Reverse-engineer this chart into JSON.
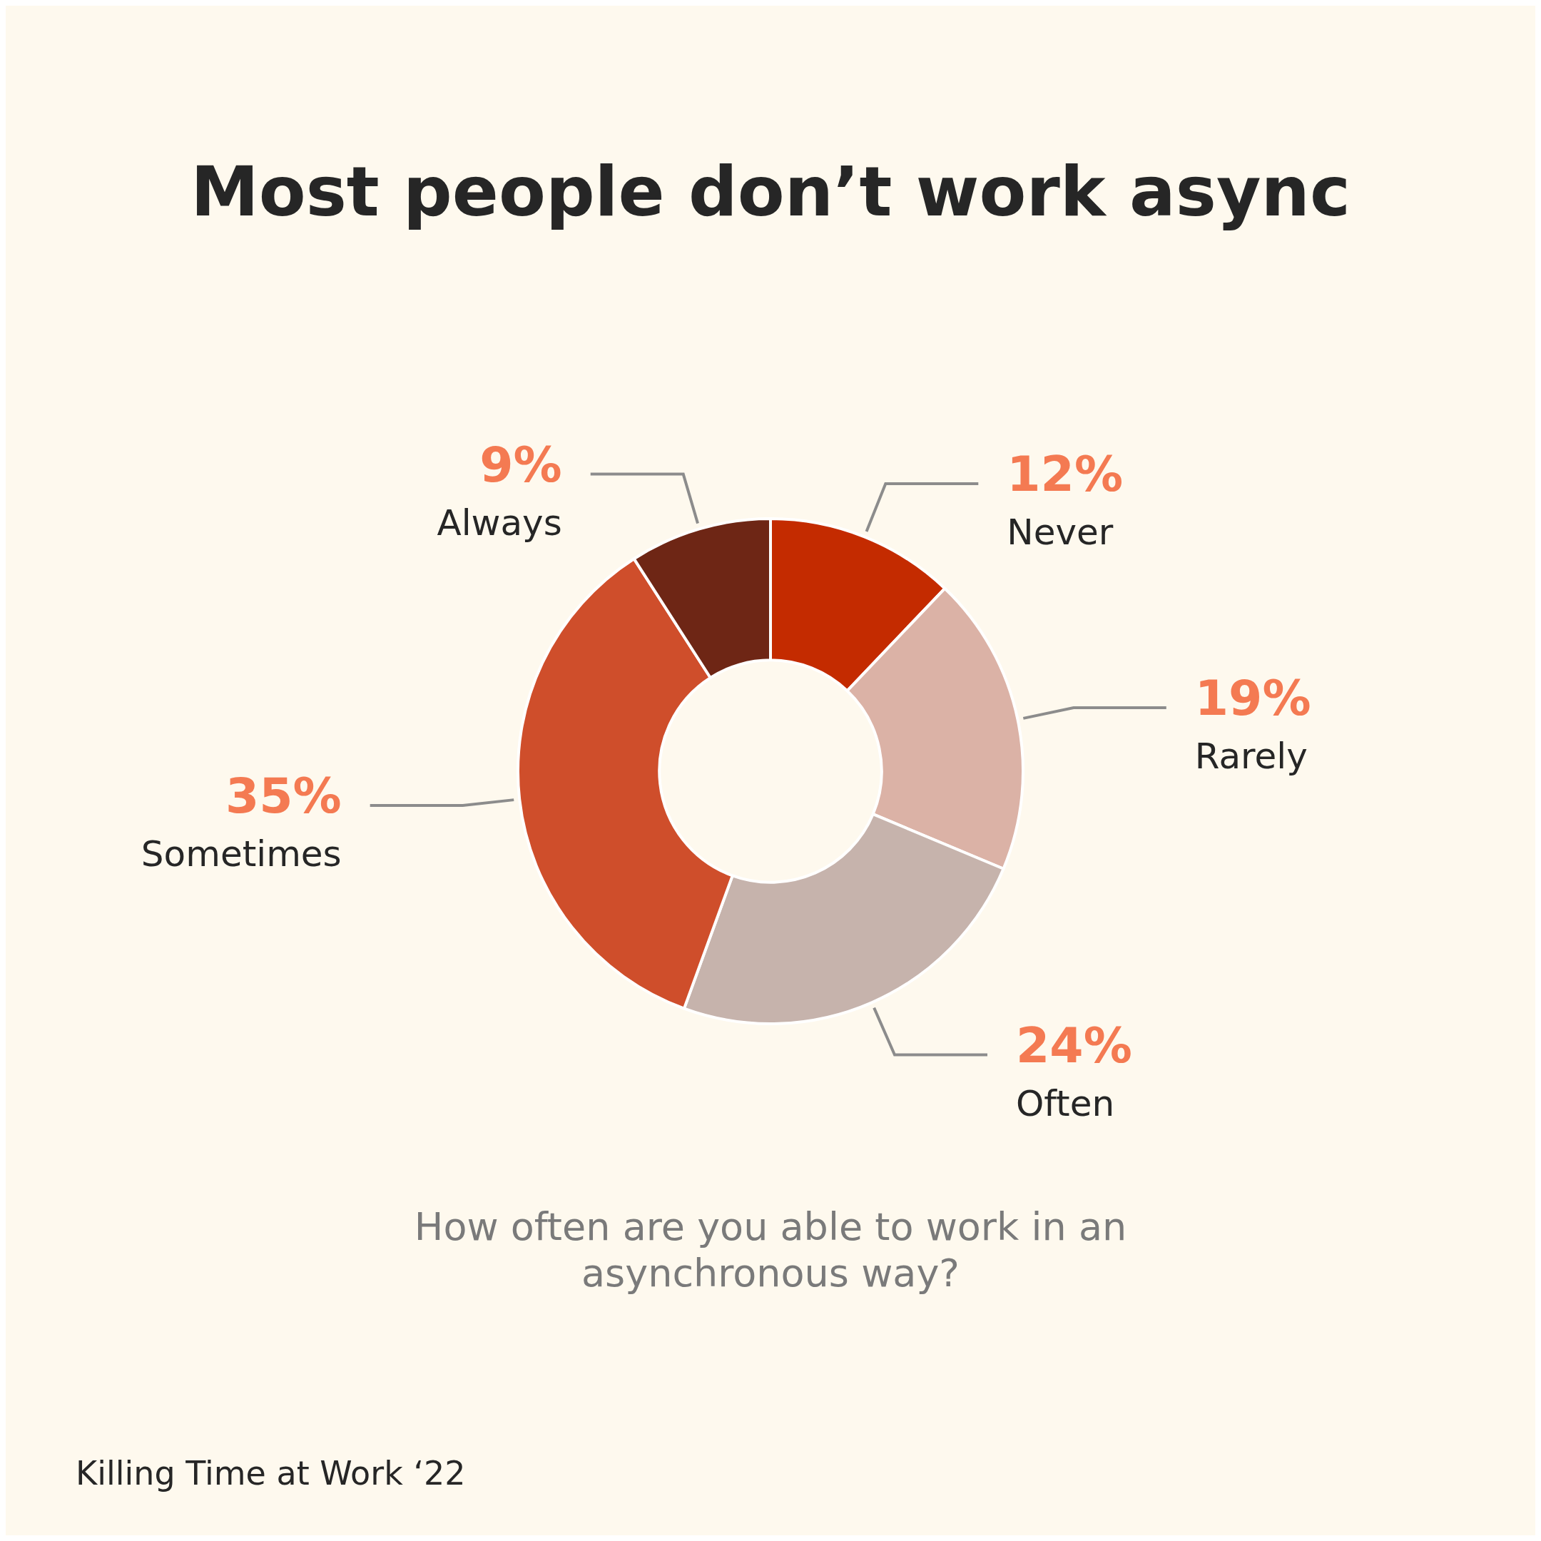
{
  "chart_data": {
    "type": "donut",
    "title": "Most people don’t work async",
    "subtitle": "How often are you able to work in an asynchronous way?",
    "annotations": [
      "Killing Time at Work ‘22"
    ],
    "categories": [
      "Never",
      "Rarely",
      "Often",
      "Sometimes",
      "Always"
    ],
    "values": [
      12,
      19,
      24,
      35,
      9
    ],
    "colors": [
      "#c42b00",
      "#dbb2a6",
      "#c6b3ac",
      "#cf4e2b",
      "#6e2615"
    ],
    "value_labels": [
      "12%",
      "19%",
      "24%",
      "35%",
      "9%"
    ],
    "legend": false
  }
}
